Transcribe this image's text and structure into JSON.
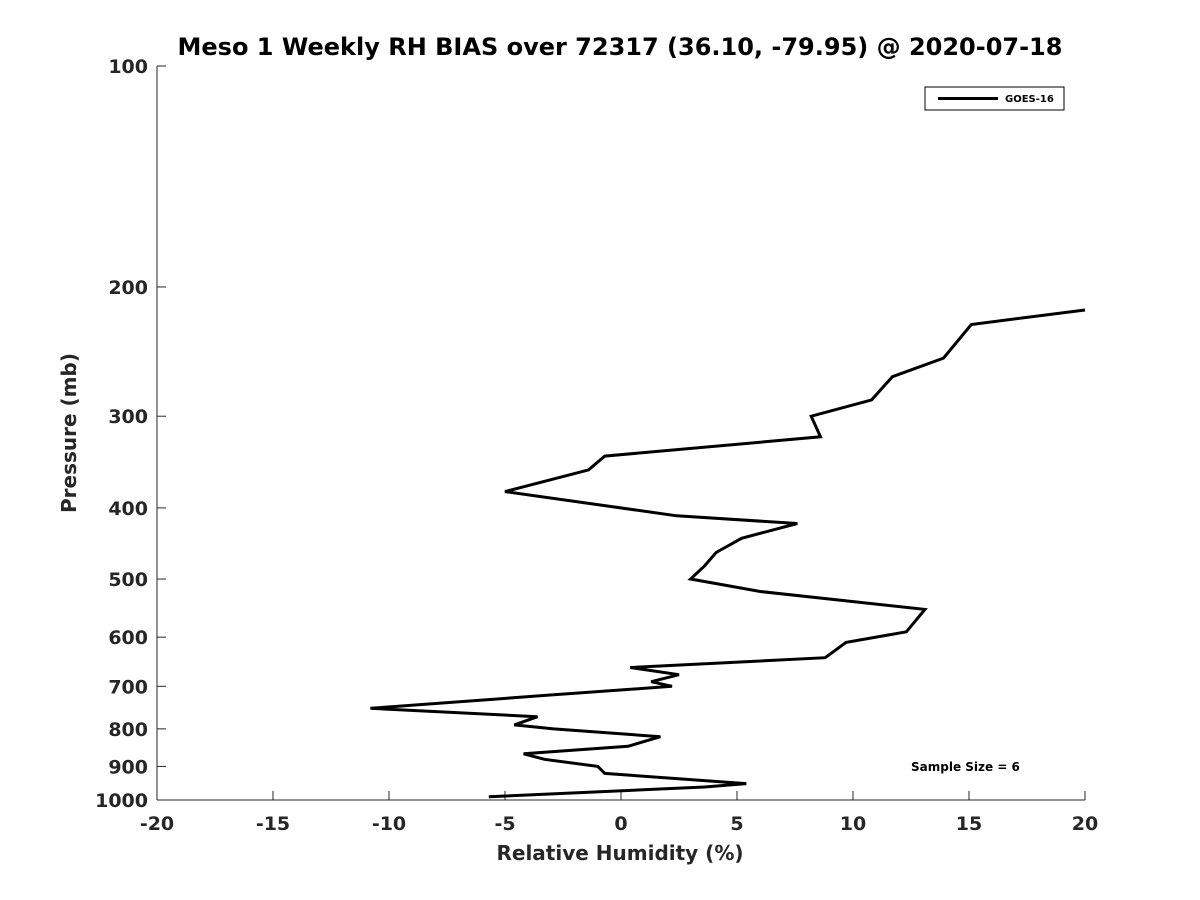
{
  "chart_data": {
    "type": "line",
    "title": "Meso 1 Weekly RH BIAS over 72317 (36.10, -79.95) @ 2020-07-18",
    "xlabel": "Relative Humidity (%)",
    "ylabel": "Pressure (mb)",
    "xlim": [
      -20,
      20
    ],
    "ylim": [
      100,
      1000
    ],
    "y_scale": "log",
    "y_reversed": true,
    "x_ticks": [
      "-20",
      "-15",
      "-10",
      "-5",
      "0",
      "5",
      "10",
      "15",
      "20"
    ],
    "y_ticks": [
      "100",
      "200",
      "300",
      "400",
      "500",
      "600",
      "700",
      "800",
      "900",
      "1000"
    ],
    "grid": false,
    "legend_position": "top-right",
    "annotation": "Sample Size = 6",
    "series": [
      {
        "name": "GOES-16",
        "color": "#000000",
        "x": [
          20.0,
          15.1,
          13.9,
          11.7,
          10.8,
          8.2,
          8.6,
          -0.7,
          -1.4,
          -5.0,
          2.4,
          7.6,
          5.2,
          4.1,
          3.6,
          3.0,
          6.0,
          13.1,
          12.3,
          9.7,
          8.8,
          0.4,
          2.5,
          1.3,
          2.2,
          -3.2,
          -10.8,
          -3.6,
          -4.6,
          -2.9,
          1.7,
          0.3,
          -4.2,
          -3.3,
          -1.0,
          -0.7,
          5.4,
          3.6,
          -5.7
        ],
        "y": [
          215,
          225,
          250,
          265,
          285,
          300,
          320,
          340,
          355,
          380,
          410,
          420,
          440,
          460,
          480,
          500,
          520,
          550,
          590,
          610,
          640,
          660,
          675,
          690,
          700,
          720,
          750,
          770,
          790,
          800,
          820,
          845,
          865,
          880,
          900,
          920,
          950,
          960,
          990
        ]
      }
    ]
  }
}
